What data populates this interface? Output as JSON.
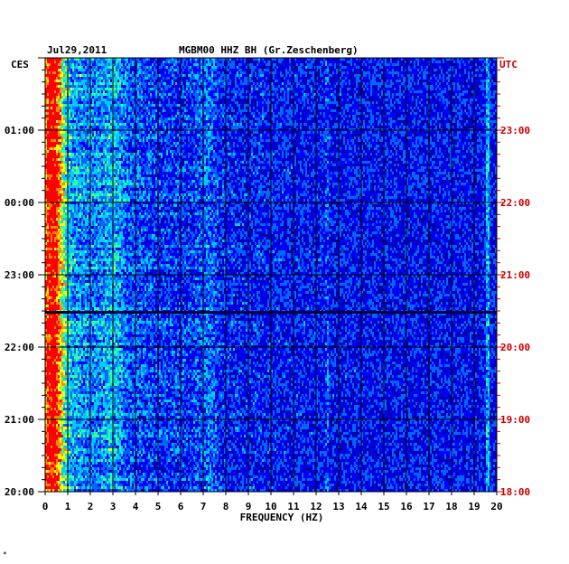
{
  "chart_data": {
    "type": "heatmap",
    "title": "MGBM00 HHZ BH (Gr.Zeschenberg)",
    "date": "Jul29,2011",
    "left_zone": "CES",
    "right_zone": "UTC",
    "xlabel": "FREQUENCY (HZ)",
    "xlim": [
      0,
      20
    ],
    "x_ticks": [
      "0",
      "1",
      "2",
      "3",
      "4",
      "5",
      "6",
      "7",
      "8",
      "9",
      "10",
      "11",
      "12",
      "13",
      "14",
      "15",
      "16",
      "17",
      "18",
      "19",
      "20"
    ],
    "left_time_ticks": [
      "01:00",
      "00:00",
      "23:00",
      "22:00",
      "21:00",
      "20:00"
    ],
    "right_time_ticks": [
      "23:00",
      "22:00",
      "21:00",
      "20:00",
      "19:00",
      "18:00"
    ],
    "right_tick_color": "#cc0000",
    "grid": true,
    "colormap": [
      "#00008b",
      "#0000ff",
      "#0066ff",
      "#00ccff",
      "#33ff99",
      "#ffff00",
      "#ff8800",
      "#ff0000"
    ]
  },
  "footer_mark": "*"
}
